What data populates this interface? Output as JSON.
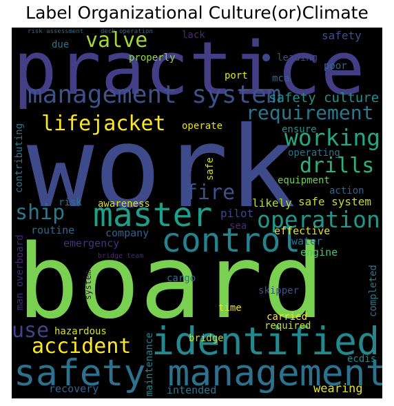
{
  "title": "Label Organizational Culture(or)Climate",
  "words": {
    "board": {
      "text": "board",
      "color": "#7ad151"
    },
    "work": {
      "text": "work",
      "color": "#3e4a89"
    },
    "practice": {
      "text": "practice",
      "color": "#433e85"
    },
    "safety_management": {
      "text": "safety management",
      "color": "#2c728e"
    },
    "identified": {
      "text": "identified",
      "color": "#23898e"
    },
    "control": {
      "text": "control",
      "color": "#26828e"
    },
    "master": {
      "text": "master",
      "color": "#1f9e89"
    },
    "management_system": {
      "text": "management system",
      "color": "#3b528b"
    },
    "operation": {
      "text": "operation",
      "color": "#1f988b"
    },
    "lifejacket": {
      "text": "lifejacket",
      "color": "#fde725"
    },
    "accident": {
      "text": "accident",
      "color": "#fde725"
    },
    "valve": {
      "text": "valve",
      "color": "#a0da39"
    },
    "requirement": {
      "text": "requirement",
      "color": "#2a788e"
    },
    "working": {
      "text": "working",
      "color": "#22a884"
    },
    "drills": {
      "text": "drills",
      "color": "#2db27d"
    },
    "fire": {
      "text": "fire",
      "color": "#3b528b"
    },
    "ship": {
      "text": "ship",
      "color": "#2a788e"
    },
    "use": {
      "text": "use",
      "color": "#414487"
    },
    "safety_culture": {
      "text": "safety culture",
      "color": "#21918c"
    },
    "safe_system": {
      "text": "safe system",
      "color": "#c2df23"
    },
    "likely": {
      "text": "likely",
      "color": "#b5de2b"
    },
    "pilot": {
      "text": "pilot",
      "color": "#3e4989"
    },
    "company": {
      "text": "company",
      "color": "#355f8d"
    },
    "emergency": {
      "text": "emergency",
      "color": "#46327e"
    },
    "routine": {
      "text": "routine",
      "color": "#31688e"
    },
    "risk": {
      "text": "risk",
      "color": "#2c728e"
    },
    "awareness": {
      "text": "awareness",
      "color": "#d2e21b"
    },
    "effective": {
      "text": "effective",
      "color": "#e5e419"
    },
    "water": {
      "text": "water",
      "color": "#2c728e"
    },
    "engine": {
      "text": "engine",
      "color": "#4ac16d"
    },
    "sea": {
      "text": "sea",
      "color": "#482878"
    },
    "action": {
      "text": "action",
      "color": "#33638d"
    },
    "equipment": {
      "text": "equipment",
      "color": "#6ece58"
    },
    "operating": {
      "text": "operating",
      "color": "#2c728e"
    },
    "ensure": {
      "text": "ensure",
      "color": "#21918c"
    },
    "operate": {
      "text": "operate",
      "color": "#e5e419"
    },
    "port": {
      "text": "port",
      "color": "#e5e419"
    },
    "mca": {
      "text": "mca",
      "color": "#31688e"
    },
    "poor": {
      "text": "poor",
      "color": "#31688e"
    },
    "safety_top": {
      "text": "safety",
      "color": "#3b528b"
    },
    "leading": {
      "text": "leading",
      "color": "#3e4989"
    },
    "lack": {
      "text": "lack",
      "color": "#482878"
    },
    "properly": {
      "text": "properly",
      "color": "#90d743"
    },
    "due": {
      "text": "due",
      "color": "#2a788e"
    },
    "risk_assessment": {
      "text": "risk assessment",
      "color": "#31688e"
    },
    "deck_operation": {
      "text": "deck operation",
      "color": "#31688e"
    },
    "contributing": {
      "text": "contributing",
      "color": "#2a788e"
    },
    "safe": {
      "text": "safe",
      "color": "#d8e219"
    },
    "man_overboard": {
      "text": "man overboard",
      "color": "#482878"
    },
    "system": {
      "text": "system",
      "color": "#440154"
    },
    "bridge_team": {
      "text": "bridge team",
      "color": "#482878"
    },
    "cargo": {
      "text": "cargo",
      "color": "#2c728e"
    },
    "time": {
      "text": "time",
      "color": "#e5e419"
    },
    "skipper": {
      "text": "skipper",
      "color": "#3b528b"
    },
    "carried": {
      "text": "carried",
      "color": "#fde725"
    },
    "required": {
      "text": "required",
      "color": "#c8e020"
    },
    "completed": {
      "text": "completed",
      "color": "#2a788e"
    },
    "hazardous": {
      "text": "hazardous",
      "color": "#d8e219"
    },
    "bridge": {
      "text": "bridge",
      "color": "#c2df23"
    },
    "maintenance": {
      "text": "maintenance",
      "color": "#25848e"
    },
    "ecdis": {
      "text": "ecdis",
      "color": "#238a8d"
    },
    "recovery": {
      "text": "recovery",
      "color": "#33638d"
    },
    "intended": {
      "text": "intended",
      "color": "#2a788e"
    },
    "wearing": {
      "text": "wearing",
      "color": "#e5e419"
    }
  }
}
